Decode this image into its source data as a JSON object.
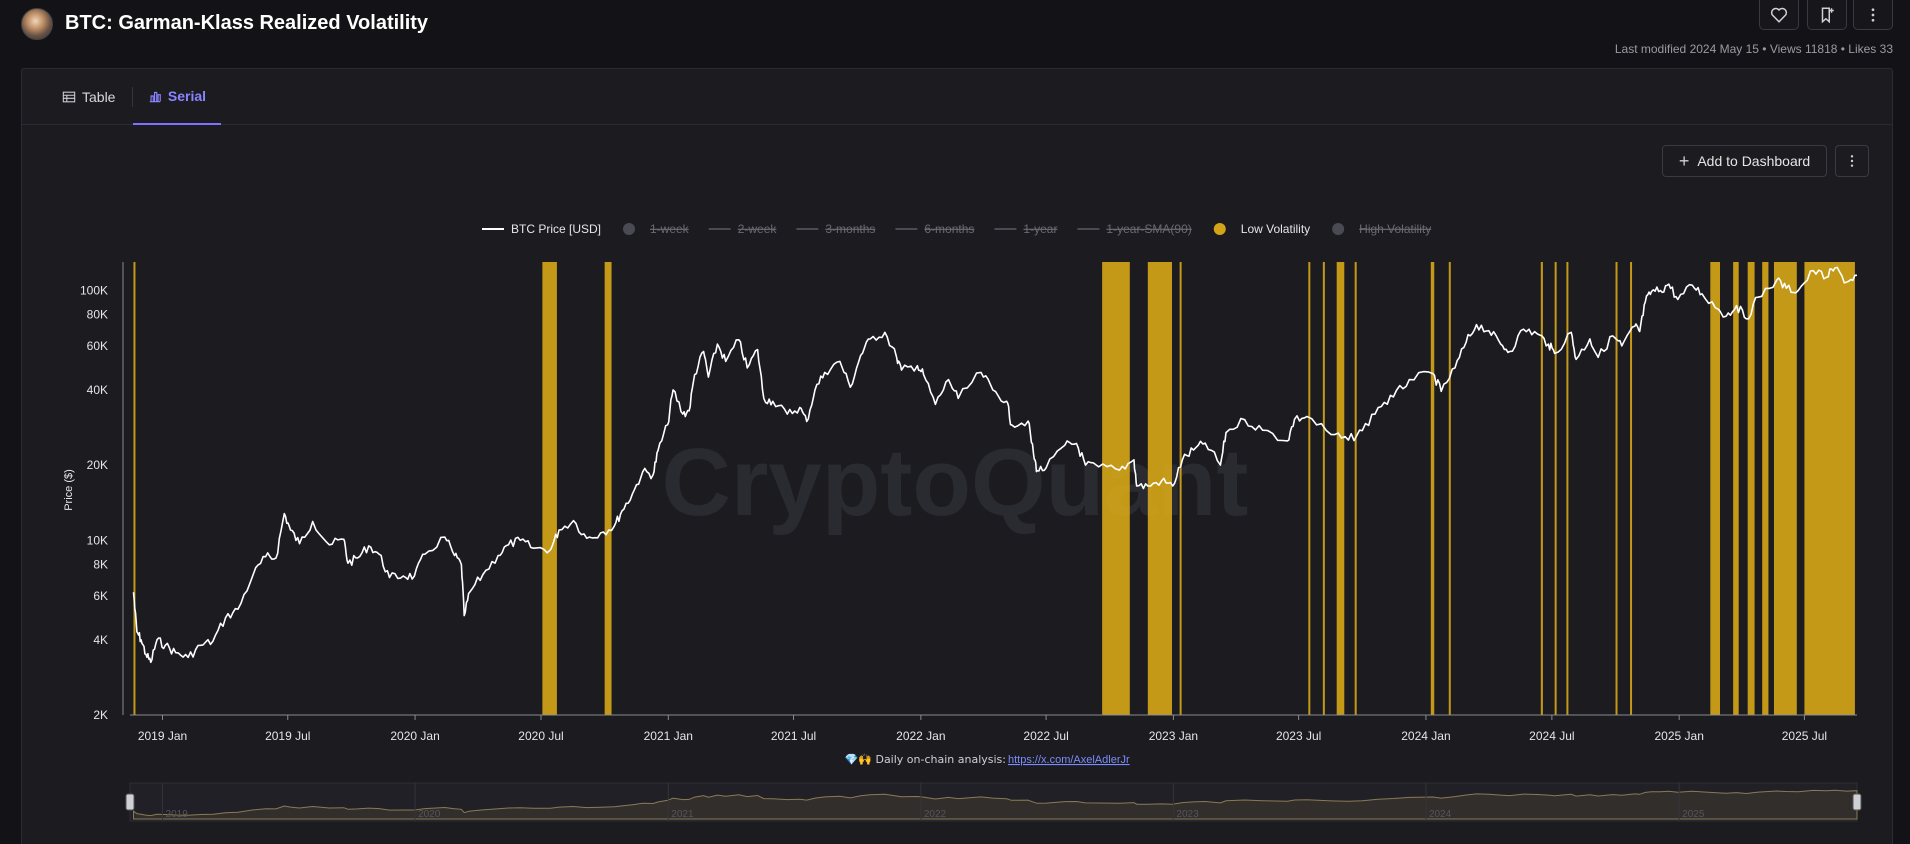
{
  "header": {
    "title": "BTC: Garman-Klass Realized Volatility",
    "meta": "Last modified 2024 May 15 • Views 11818 • Likes 33",
    "icons": [
      "heart-icon",
      "bookmark-plus-icon",
      "kebab-menu-icon"
    ]
  },
  "tabs": [
    {
      "label": "Table",
      "icon": "table-icon",
      "active": false
    },
    {
      "label": "Serial",
      "icon": "bar-chart-icon",
      "active": true
    }
  ],
  "toolbar": {
    "add_dashboard_label": "Add to Dashboard"
  },
  "colors": {
    "accent": "#7b73ff",
    "price_line": "#ffffff",
    "low_volatility": "#d4a418",
    "background": "#1b1b20"
  },
  "chart_data": {
    "type": "line",
    "title": "",
    "ylabel": "Price ($)",
    "yscale": "log",
    "ylim": [
      2000,
      130000
    ],
    "ytick_labels": [
      "2K",
      "4K",
      "6K",
      "8K",
      "10K",
      "20K",
      "40K",
      "60K",
      "80K",
      "100K"
    ],
    "ytick_values": [
      2000,
      4000,
      6000,
      8000,
      10000,
      20000,
      40000,
      60000,
      80000,
      100000
    ],
    "xlim": [
      "2018-11-15",
      "2025-09-15"
    ],
    "xtick_labels": [
      "2019 Jan",
      "2019 Jul",
      "2020 Jan",
      "2020 Jul",
      "2021 Jan",
      "2021 Jul",
      "2022 Jan",
      "2022 Jul",
      "2023 Jan",
      "2023 Jul",
      "2024 Jan",
      "2024 Jul",
      "2025 Jan",
      "2025 Jul"
    ],
    "xtick_dates": [
      "2019-01-01",
      "2019-07-01",
      "2020-01-01",
      "2020-07-01",
      "2021-01-01",
      "2021-07-01",
      "2022-01-01",
      "2022-07-01",
      "2023-01-01",
      "2023-07-01",
      "2024-01-01",
      "2024-07-01",
      "2025-01-01",
      "2025-07-01"
    ],
    "legend_position": "top",
    "legend": [
      {
        "name": "BTC Price [USD]",
        "visible": true,
        "style": "line",
        "color": "#ffffff"
      },
      {
        "name": "1-week",
        "visible": false,
        "style": "dot",
        "color": "#5a5a63"
      },
      {
        "name": "2-week",
        "visible": false,
        "style": "line",
        "color": "#5a5a63"
      },
      {
        "name": "3-months",
        "visible": false,
        "style": "line",
        "color": "#5a5a63"
      },
      {
        "name": "6-months",
        "visible": false,
        "style": "line",
        "color": "#5a5a63"
      },
      {
        "name": "1-year",
        "visible": false,
        "style": "line",
        "color": "#5a5a63"
      },
      {
        "name": "1-year-SMA(90)",
        "visible": false,
        "style": "line",
        "color": "#5a5a63"
      },
      {
        "name": "Low Volatility",
        "visible": true,
        "style": "dot",
        "color": "#d4a418"
      },
      {
        "name": "High Volatility",
        "visible": false,
        "style": "dot",
        "color": "#5a5a63"
      }
    ],
    "series": [
      {
        "name": "BTC Price [USD]",
        "points": [
          [
            "2018-11-20",
            6200
          ],
          [
            "2018-11-25",
            4300
          ],
          [
            "2018-12-01",
            4000
          ],
          [
            "2018-12-08",
            3500
          ],
          [
            "2018-12-15",
            3250
          ],
          [
            "2018-12-24",
            4000
          ],
          [
            "2019-01-05",
            3800
          ],
          [
            "2019-01-20",
            3550
          ],
          [
            "2019-02-07",
            3400
          ],
          [
            "2019-02-25",
            3800
          ],
          [
            "2019-03-15",
            3950
          ],
          [
            "2019-04-02",
            4900
          ],
          [
            "2019-04-20",
            5300
          ],
          [
            "2019-05-12",
            7300
          ],
          [
            "2019-05-30",
            8600
          ],
          [
            "2019-06-14",
            8500
          ],
          [
            "2019-06-26",
            12800
          ],
          [
            "2019-07-05",
            11000
          ],
          [
            "2019-07-18",
            9700
          ],
          [
            "2019-08-06",
            11900
          ],
          [
            "2019-08-30",
            9600
          ],
          [
            "2019-09-20",
            10100
          ],
          [
            "2019-09-26",
            8100
          ],
          [
            "2019-10-10",
            8500
          ],
          [
            "2019-10-26",
            9500
          ],
          [
            "2019-11-10",
            8800
          ],
          [
            "2019-11-25",
            7100
          ],
          [
            "2019-12-15",
            7200
          ],
          [
            "2019-12-31",
            7200
          ],
          [
            "2020-01-15",
            8800
          ],
          [
            "2020-02-13",
            10300
          ],
          [
            "2020-02-27",
            8700
          ],
          [
            "2020-03-08",
            8000
          ],
          [
            "2020-03-12",
            5000
          ],
          [
            "2020-03-20",
            6200
          ],
          [
            "2020-04-08",
            7300
          ],
          [
            "2020-04-30",
            8700
          ],
          [
            "2020-05-15",
            9600
          ],
          [
            "2020-06-01",
            10000
          ],
          [
            "2020-06-20",
            9300
          ],
          [
            "2020-07-15",
            9200
          ],
          [
            "2020-07-27",
            11000
          ],
          [
            "2020-08-17",
            12000
          ],
          [
            "2020-09-05",
            10200
          ],
          [
            "2020-09-25",
            10700
          ],
          [
            "2020-10-15",
            11400
          ],
          [
            "2020-10-26",
            13100
          ],
          [
            "2020-11-10",
            15300
          ],
          [
            "2020-11-25",
            18800
          ],
          [
            "2020-12-10",
            18300
          ],
          [
            "2020-12-17",
            22800
          ],
          [
            "2020-12-31",
            29000
          ],
          [
            "2021-01-08",
            40000
          ],
          [
            "2021-01-22",
            32000
          ],
          [
            "2021-01-31",
            33000
          ],
          [
            "2021-02-08",
            46000
          ],
          [
            "2021-02-21",
            57000
          ],
          [
            "2021-02-28",
            45000
          ],
          [
            "2021-03-13",
            61000
          ],
          [
            "2021-03-25",
            52000
          ],
          [
            "2021-04-13",
            63500
          ],
          [
            "2021-04-25",
            49000
          ],
          [
            "2021-05-10",
            58000
          ],
          [
            "2021-05-19",
            37000
          ],
          [
            "2021-06-01",
            36000
          ],
          [
            "2021-06-22",
            32000
          ],
          [
            "2021-07-10",
            34000
          ],
          [
            "2021-07-20",
            29900
          ],
          [
            "2021-08-01",
            40000
          ],
          [
            "2021-08-15",
            47000
          ],
          [
            "2021-09-06",
            52000
          ],
          [
            "2021-09-21",
            41000
          ],
          [
            "2021-10-06",
            55000
          ],
          [
            "2021-10-20",
            64000
          ],
          [
            "2021-11-10",
            68000
          ],
          [
            "2021-11-27",
            54000
          ],
          [
            "2021-12-04",
            48000
          ],
          [
            "2021-12-27",
            50000
          ],
          [
            "2022-01-05",
            46000
          ],
          [
            "2022-01-22",
            35000
          ],
          [
            "2022-02-10",
            44000
          ],
          [
            "2022-02-24",
            37000
          ],
          [
            "2022-03-29",
            47000
          ],
          [
            "2022-04-15",
            40000
          ],
          [
            "2022-05-05",
            36000
          ],
          [
            "2022-05-12",
            29000
          ],
          [
            "2022-06-05",
            30000
          ],
          [
            "2022-06-13",
            22000
          ],
          [
            "2022-06-18",
            19000
          ],
          [
            "2022-07-01",
            19500
          ],
          [
            "2022-07-28",
            24000
          ],
          [
            "2022-08-14",
            24400
          ],
          [
            "2022-08-27",
            20000
          ],
          [
            "2022-09-15",
            19700
          ],
          [
            "2022-10-15",
            19100
          ],
          [
            "2022-11-05",
            21000
          ],
          [
            "2022-11-09",
            16500
          ],
          [
            "2022-11-25",
            16500
          ],
          [
            "2022-12-15",
            17300
          ],
          [
            "2022-12-31",
            16500
          ],
          [
            "2023-01-14",
            21000
          ],
          [
            "2023-01-30",
            23000
          ],
          [
            "2023-02-16",
            24500
          ],
          [
            "2023-03-10",
            20000
          ],
          [
            "2023-03-18",
            27000
          ],
          [
            "2023-04-14",
            30400
          ],
          [
            "2023-05-10",
            27600
          ],
          [
            "2023-06-15",
            25000
          ],
          [
            "2023-06-25",
            30500
          ],
          [
            "2023-07-13",
            31300
          ],
          [
            "2023-08-17",
            26500
          ],
          [
            "2023-09-11",
            25200
          ],
          [
            "2023-10-01",
            27500
          ],
          [
            "2023-10-24",
            34000
          ],
          [
            "2023-11-15",
            37500
          ],
          [
            "2023-12-08",
            44000
          ],
          [
            "2024-01-11",
            46500
          ],
          [
            "2024-01-23",
            39500
          ],
          [
            "2024-02-12",
            49000
          ],
          [
            "2024-02-28",
            62000
          ],
          [
            "2024-03-14",
            73000
          ],
          [
            "2024-04-01",
            69000
          ],
          [
            "2024-04-18",
            61000
          ],
          [
            "2024-05-01",
            57000
          ],
          [
            "2024-05-21",
            70000
          ],
          [
            "2024-06-10",
            67000
          ],
          [
            "2024-06-26",
            61000
          ],
          [
            "2024-07-05",
            56000
          ],
          [
            "2024-07-29",
            68000
          ],
          [
            "2024-08-05",
            53000
          ],
          [
            "2024-08-25",
            64000
          ],
          [
            "2024-09-06",
            54000
          ],
          [
            "2024-09-27",
            65800
          ],
          [
            "2024-10-10",
            60000
          ],
          [
            "2024-10-29",
            72000
          ],
          [
            "2024-11-05",
            68500
          ],
          [
            "2024-11-13",
            90000
          ],
          [
            "2024-11-22",
            99000
          ],
          [
            "2024-12-05",
            100000
          ],
          [
            "2024-12-17",
            106000
          ],
          [
            "2024-12-30",
            92000
          ],
          [
            "2025-01-20",
            105000
          ],
          [
            "2025-02-03",
            97000
          ],
          [
            "2025-02-27",
            84000
          ],
          [
            "2025-03-10",
            79000
          ],
          [
            "2025-03-25",
            87000
          ],
          [
            "2025-04-08",
            77000
          ],
          [
            "2025-04-25",
            94000
          ],
          [
            "2025-05-22",
            110000
          ],
          [
            "2025-06-05",
            102000
          ],
          [
            "2025-06-22",
            100000
          ],
          [
            "2025-07-14",
            120000
          ],
          [
            "2025-08-02",
            113000
          ],
          [
            "2025-08-14",
            123000
          ],
          [
            "2025-08-31",
            108000
          ],
          [
            "2025-09-15",
            115000
          ]
        ]
      }
    ],
    "low_volatility_periods": [
      [
        "2018-11-20",
        "2018-11-21"
      ],
      [
        "2020-07-03",
        "2020-07-24"
      ],
      [
        "2020-10-01",
        "2020-10-11"
      ],
      [
        "2022-09-20",
        "2022-10-30"
      ],
      [
        "2022-11-25",
        "2022-12-30"
      ],
      [
        "2023-01-10",
        "2023-01-12"
      ],
      [
        "2023-07-15",
        "2023-07-17"
      ],
      [
        "2023-08-05",
        "2023-08-07"
      ],
      [
        "2023-08-25",
        "2023-09-05"
      ],
      [
        "2023-09-20",
        "2023-09-22"
      ],
      [
        "2024-01-08",
        "2024-01-13"
      ],
      [
        "2024-02-03",
        "2024-02-05"
      ],
      [
        "2024-06-15",
        "2024-06-18"
      ],
      [
        "2024-07-05",
        "2024-07-07"
      ],
      [
        "2024-07-22",
        "2024-07-24"
      ],
      [
        "2024-10-01",
        "2024-10-03"
      ],
      [
        "2024-10-22",
        "2024-10-24"
      ],
      [
        "2025-02-15",
        "2025-03-01"
      ],
      [
        "2025-03-20",
        "2025-03-28"
      ],
      [
        "2025-04-10",
        "2025-04-20"
      ],
      [
        "2025-05-01",
        "2025-05-10"
      ],
      [
        "2025-05-18",
        "2025-06-20"
      ],
      [
        "2025-07-01",
        "2025-09-12"
      ]
    ],
    "watermark": "CryptoQuant",
    "footer_text": "💎🙌 Daily on-chain analysis:",
    "footer_link": "https://x.com/AxelAdlerJr",
    "navigator_labels": [
      "2019",
      "2020",
      "2021",
      "2022",
      "2023",
      "2024",
      "2025"
    ],
    "navigator_dates": [
      "2019-01-01",
      "2020-01-01",
      "2021-01-01",
      "2022-01-01",
      "2023-01-01",
      "2024-01-01",
      "2025-01-01"
    ]
  }
}
